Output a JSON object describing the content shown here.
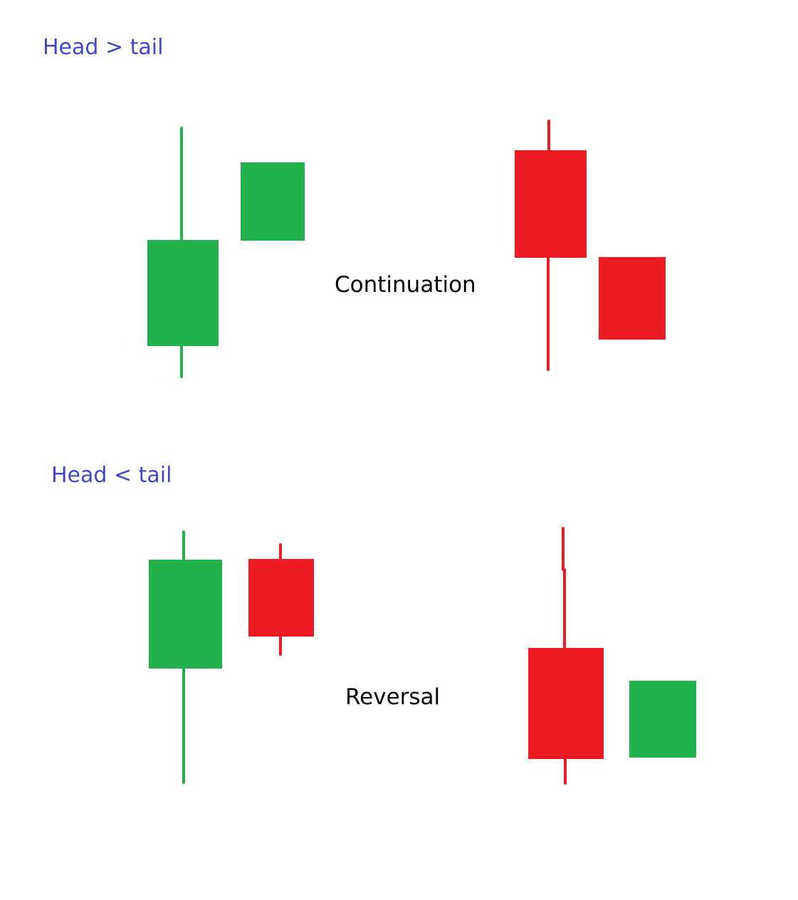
{
  "colors": {
    "heading": "#3f48cc",
    "label": "#000000",
    "bullish": "#22b14c",
    "bearish": "#ed1c24",
    "background": "#ffffff"
  },
  "sections": [
    {
      "heading": "Head > tail",
      "label": "Continuation",
      "pairs": [
        {
          "candles": [
            "bullish-long-candle",
            "bullish-gap-up-body"
          ]
        },
        {
          "candles": [
            "bearish-long-candle",
            "bearish-gap-down-body"
          ]
        }
      ]
    },
    {
      "heading": "Head < tail",
      "label": "Reversal",
      "pairs": [
        {
          "candles": [
            "bullish-long-candle",
            "bearish-small-candle"
          ]
        },
        {
          "candles": [
            "bearish-long-candle",
            "bullish-body"
          ]
        }
      ]
    }
  ]
}
